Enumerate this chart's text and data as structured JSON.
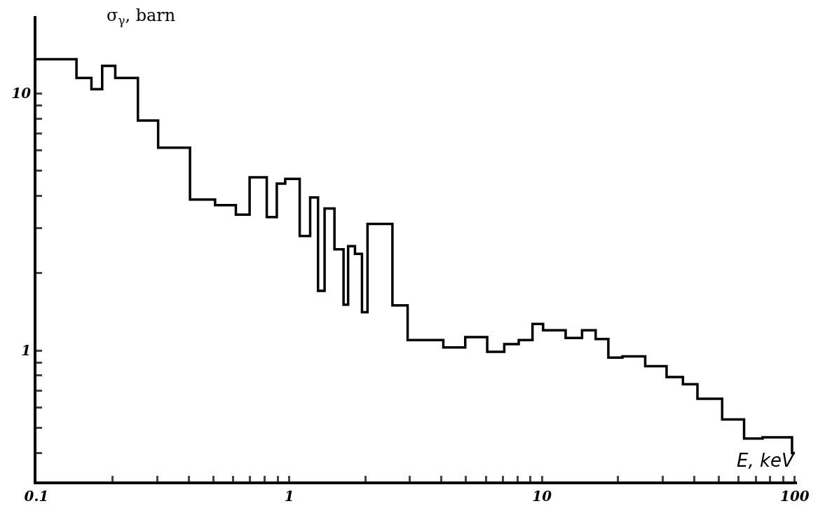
{
  "chart_data": {
    "type": "step",
    "ylabel": "σ$_{γ}$, barn",
    "xlabel": "E, keV",
    "x": [
      0.1,
      0.144,
      0.165,
      0.182,
      0.205,
      0.252,
      0.303,
      0.405,
      0.509,
      0.615,
      0.697,
      0.815,
      0.893,
      0.964,
      1.1,
      1.21,
      1.3,
      1.38,
      1.51,
      1.64,
      1.71,
      1.82,
      1.94,
      2.04,
      2.56,
      2.94,
      4.07,
      4.97,
      6.07,
      7.09,
      8.09,
      9.17,
      10.1,
      12.4,
      14.4,
      16.3,
      18.3,
      20.8,
      25.6,
      31.1,
      36.1,
      41.2,
      51.6,
      63.0,
      74.6,
      97.5,
      100
    ],
    "values": [
      13.6,
      11.5,
      10.4,
      12.8,
      11.5,
      7.85,
      6.16,
      3.87,
      3.68,
      3.38,
      4.72,
      3.31,
      4.46,
      4.66,
      2.79,
      3.94,
      1.71,
      3.57,
      2.48,
      1.51,
      2.55,
      2.38,
      1.41,
      3.11,
      1.5,
      1.1,
      1.03,
      1.13,
      0.99,
      1.06,
      1.1,
      1.27,
      1.2,
      1.12,
      1.2,
      1.11,
      0.94,
      0.95,
      0.87,
      0.79,
      0.74,
      0.65,
      0.54,
      0.455,
      0.46,
      0.4,
      0.4
    ],
    "color": "#000000",
    "log": "xy",
    "line_style": "solid",
    "marker": "none",
    "xlim": [
      0.1,
      102
    ],
    "ylim": [
      0.31,
      20
    ],
    "xticks": [
      {
        "value": 0.1,
        "label": "0.1"
      },
      {
        "value": 0.2,
        "label": null
      },
      {
        "value": 0.3,
        "label": null
      },
      {
        "value": 0.4,
        "label": null
      },
      {
        "value": 0.5,
        "label": null
      },
      {
        "value": 0.6,
        "label": null
      },
      {
        "value": 0.7,
        "label": null
      },
      {
        "value": 0.8,
        "label": null
      },
      {
        "value": 0.9,
        "label": null
      },
      1,
      {
        "value": 2,
        "label": null
      },
      {
        "value": 3,
        "label": null
      },
      {
        "value": 4,
        "label": null
      },
      {
        "value": 5,
        "label": null
      },
      {
        "value": 6,
        "label": null
      },
      {
        "value": 7,
        "label": null
      },
      {
        "value": 8,
        "label": null
      },
      {
        "value": 9,
        "label": null
      },
      10,
      {
        "value": 20,
        "label": null
      },
      {
        "value": 30,
        "label": null
      },
      {
        "value": 40,
        "label": null
      },
      {
        "value": 50,
        "label": null
      },
      {
        "value": 60,
        "label": null
      },
      {
        "value": 70,
        "label": null
      },
      {
        "value": 80,
        "label": null
      },
      {
        "value": 90,
        "label": null
      },
      100
    ],
    "yticks": [
      {
        "value": 0.4,
        "label": null
      },
      {
        "value": 0.5,
        "label": null
      },
      {
        "value": 0.6,
        "label": null
      },
      {
        "value": 0.7,
        "label": null
      },
      {
        "value": 0.8,
        "label": null
      },
      {
        "value": 0.9,
        "label": null
      },
      1,
      {
        "value": 2,
        "label": null
      },
      {
        "value": 3,
        "label": null
      },
      {
        "value": 4,
        "label": null
      },
      {
        "value": 5,
        "label": null
      },
      {
        "value": 6,
        "label": null
      },
      {
        "value": 7,
        "label": null
      },
      {
        "value": 8,
        "label": null
      },
      {
        "value": 9,
        "label": null
      },
      10
    ]
  }
}
